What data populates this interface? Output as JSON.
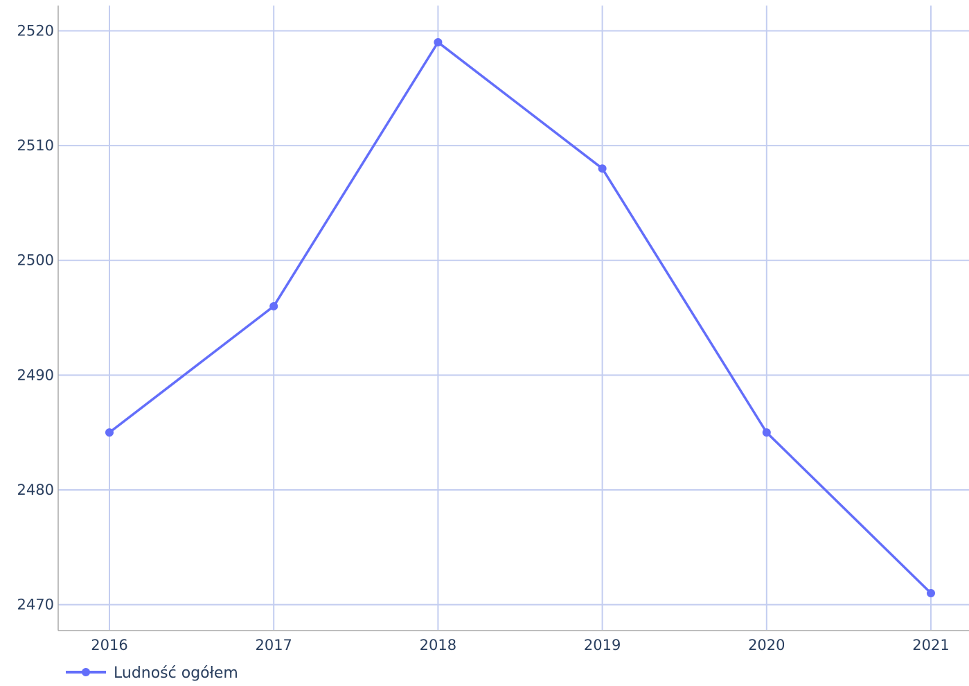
{
  "chart_data": {
    "type": "line",
    "x": [
      "2016",
      "2017",
      "2018",
      "2019",
      "2020",
      "2021"
    ],
    "series": [
      {
        "name": "Ludność ogółem",
        "values": [
          2485,
          2496,
          2519,
          2508,
          2485,
          2471
        ],
        "color": "#636efa"
      }
    ],
    "yticks": [
      2470,
      2480,
      2490,
      2500,
      2510,
      2520
    ],
    "ylim": [
      2467.8,
      2522.2
    ],
    "grid": true,
    "legend_position": "bottom-left",
    "grid_color": "#c3cdf0",
    "axis_color": "#a8a8a8",
    "text_color": "#2a3f5f"
  }
}
